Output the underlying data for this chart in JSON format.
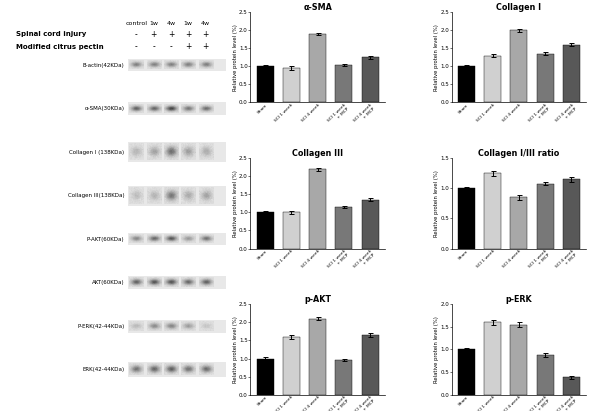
{
  "charts": [
    {
      "title": "α-SMA",
      "ylabel": "Relative protein level (%)",
      "ylim": [
        0,
        2.5
      ],
      "yticks": [
        0.0,
        0.5,
        1.0,
        1.5,
        2.0,
        2.5
      ],
      "values": [
        1.0,
        0.95,
        1.9,
        1.05,
        1.25
      ],
      "errors": [
        0.03,
        0.05,
        0.04,
        0.03,
        0.04
      ],
      "colors": [
        "#000000",
        "#d0d0d0",
        "#a8a8a8",
        "#787878",
        "#585858"
      ]
    },
    {
      "title": "Collagen I",
      "ylabel": "Relative protein level (%)",
      "ylim": [
        0,
        2.5
      ],
      "yticks": [
        0.0,
        0.5,
        1.0,
        1.5,
        2.0,
        2.5
      ],
      "values": [
        1.0,
        1.3,
        2.0,
        1.35,
        1.6
      ],
      "errors": [
        0.03,
        0.04,
        0.05,
        0.04,
        0.04
      ],
      "colors": [
        "#000000",
        "#d0d0d0",
        "#a8a8a8",
        "#787878",
        "#585858"
      ]
    },
    {
      "title": "Collagen III",
      "ylabel": "Relative protein level (%)",
      "ylim": [
        0,
        2.5
      ],
      "yticks": [
        0.0,
        0.5,
        1.0,
        1.5,
        2.0,
        2.5
      ],
      "values": [
        1.0,
        1.0,
        2.2,
        1.15,
        1.35
      ],
      "errors": [
        0.03,
        0.05,
        0.04,
        0.04,
        0.04
      ],
      "colors": [
        "#000000",
        "#d0d0d0",
        "#a8a8a8",
        "#787878",
        "#585858"
      ]
    },
    {
      "title": "Collagen I/III ratio",
      "ylabel": "Relative protein level (%)",
      "ylim": [
        0,
        1.5
      ],
      "yticks": [
        0.0,
        0.5,
        1.0,
        1.5
      ],
      "values": [
        1.0,
        1.25,
        0.85,
        1.08,
        1.15
      ],
      "errors": [
        0.03,
        0.04,
        0.04,
        0.03,
        0.04
      ],
      "colors": [
        "#000000",
        "#d0d0d0",
        "#a8a8a8",
        "#787878",
        "#585858"
      ]
    },
    {
      "title": "p-AKT",
      "ylabel": "Relative protein level (%)",
      "ylim": [
        0,
        2.5
      ],
      "yticks": [
        0.0,
        0.5,
        1.0,
        1.5,
        2.0,
        2.5
      ],
      "values": [
        1.0,
        1.6,
        2.1,
        0.95,
        1.65
      ],
      "errors": [
        0.03,
        0.05,
        0.04,
        0.03,
        0.05
      ],
      "colors": [
        "#000000",
        "#d0d0d0",
        "#a8a8a8",
        "#787878",
        "#585858"
      ]
    },
    {
      "title": "p-ERK",
      "ylabel": "Relative protein level (%)",
      "ylim": [
        0,
        2.0
      ],
      "yticks": [
        0.0,
        0.5,
        1.0,
        1.5,
        2.0
      ],
      "values": [
        1.0,
        1.6,
        1.55,
        0.88,
        0.38
      ],
      "errors": [
        0.03,
        0.05,
        0.05,
        0.04,
        0.03
      ],
      "colors": [
        "#000000",
        "#d0d0d0",
        "#a8a8a8",
        "#787878",
        "#585858"
      ]
    }
  ],
  "xticklabels": [
    "Sham",
    "SCI 1 week",
    "SCI 4 week",
    "SCI 1 week\n+ MCP",
    "SCI 4 week\n+ MCP"
  ],
  "western_labels": [
    "B-actin(42KDa)",
    "α-SMA(30KDa)",
    "Collagen I (138KDa)",
    "Collagen III(138KDa)",
    "P-AKT(60KDa)",
    "AKT(60KDa)",
    "P-ERK(42-44KDa)",
    "ERK(42-44KDa)"
  ],
  "header_labels": [
    "control",
    "1w",
    "4w",
    "1w",
    "4w"
  ],
  "spinal_cord_injury": [
    "-",
    "+",
    "+",
    "+",
    "+"
  ],
  "modified_citrus_pectin": [
    "-",
    "-",
    "-",
    "+",
    "+"
  ],
  "background_color": "#ffffff",
  "bar_width": 0.65,
  "band_intensities": [
    [
      0.55,
      0.55,
      0.55,
      0.55,
      0.55
    ],
    [
      0.72,
      0.7,
      0.88,
      0.6,
      0.65
    ],
    [
      0.25,
      0.35,
      0.65,
      0.38,
      0.3
    ],
    [
      0.2,
      0.25,
      0.6,
      0.3,
      0.35
    ],
    [
      0.5,
      0.68,
      0.78,
      0.4,
      0.62
    ],
    [
      0.72,
      0.78,
      0.78,
      0.68,
      0.72
    ],
    [
      0.22,
      0.48,
      0.52,
      0.38,
      0.15
    ],
    [
      0.62,
      0.68,
      0.72,
      0.62,
      0.65
    ]
  ]
}
